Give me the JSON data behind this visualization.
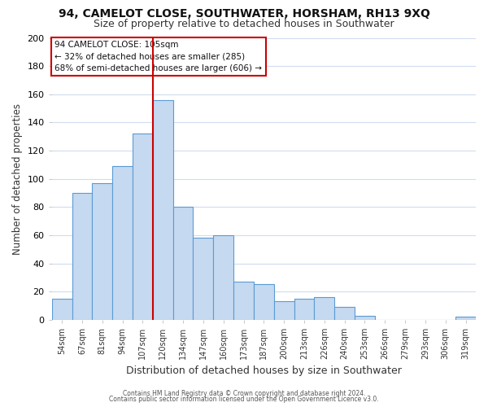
{
  "title1": "94, CAMELOT CLOSE, SOUTHWATER, HORSHAM, RH13 9XQ",
  "title2": "Size of property relative to detached houses in Southwater",
  "xlabel": "Distribution of detached houses by size in Southwater",
  "ylabel": "Number of detached properties",
  "footer1": "Contains HM Land Registry data © Crown copyright and database right 2024.",
  "footer2": "Contains public sector information licensed under the Open Government Licence v3.0.",
  "bar_labels": [
    "54sqm",
    "67sqm",
    "81sqm",
    "94sqm",
    "107sqm",
    "120sqm",
    "134sqm",
    "147sqm",
    "160sqm",
    "173sqm",
    "187sqm",
    "200sqm",
    "213sqm",
    "226sqm",
    "240sqm",
    "253sqm",
    "266sqm",
    "279sqm",
    "293sqm",
    "306sqm",
    "319sqm"
  ],
  "bar_values": [
    15,
    90,
    97,
    109,
    132,
    156,
    80,
    58,
    60,
    27,
    25,
    13,
    15,
    16,
    9,
    3,
    0,
    0,
    0,
    0,
    2
  ],
  "bar_color": "#c5d9f0",
  "bar_edge_color": "#5b9bd5",
  "vline_x": 4.5,
  "vline_color": "#cc0000",
  "annotation_line1": "94 CAMELOT CLOSE: 105sqm",
  "annotation_line2": "← 32% of detached houses are smaller (285)",
  "annotation_line3": "68% of semi-detached houses are larger (606) →",
  "ylim": [
    0,
    200
  ],
  "yticks": [
    0,
    20,
    40,
    60,
    80,
    100,
    120,
    140,
    160,
    180,
    200
  ],
  "bg_color": "#ffffff",
  "grid_color": "#d0dcee",
  "title1_fontsize": 10,
  "title2_fontsize": 9,
  "xlabel_fontsize": 9,
  "ylabel_fontsize": 8.5
}
